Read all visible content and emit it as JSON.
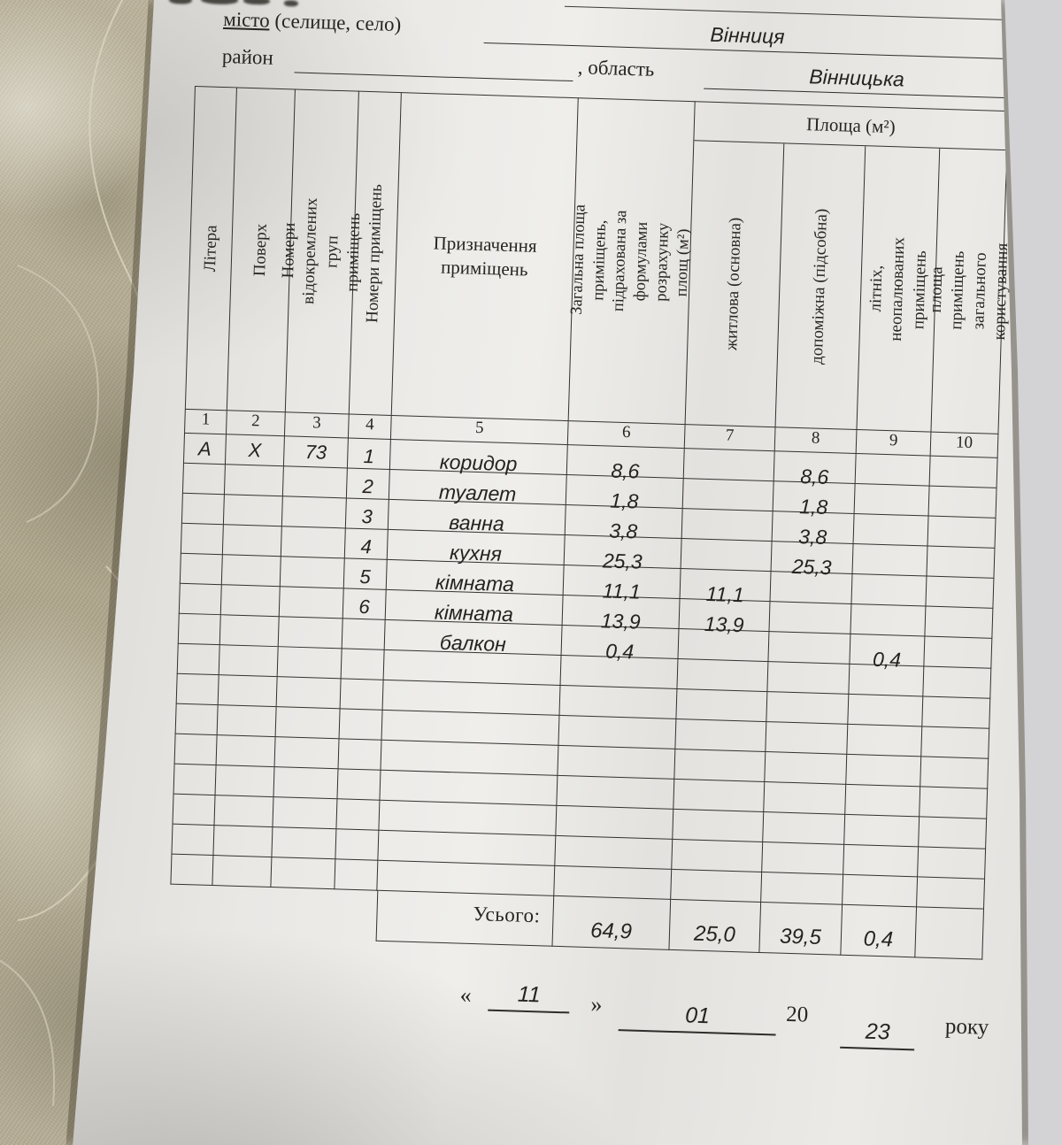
{
  "colors": {
    "paper": "#e9e8e5",
    "ink": "#26251f",
    "line": "#343230",
    "fabric": "#b3ab93",
    "handwriting": "#24231f"
  },
  "region": {
    "city_word": "місто",
    "city_suffix": " (селище, село)",
    "city_value": "Вінниця",
    "district_label": "район",
    "oblast_label": ", область",
    "oblast_value": "Вінницька"
  },
  "table": {
    "area_band_label": "Площа (м²)",
    "headers": [
      {
        "id": "1",
        "label": "Літера",
        "orient": "v",
        "under_band": false
      },
      {
        "id": "2",
        "label": "Поверх",
        "orient": "v",
        "under_band": false
      },
      {
        "id": "3",
        "label": "Номери відокремлених груп приміщень",
        "orient": "v",
        "under_band": false
      },
      {
        "id": "4",
        "label": "Номери приміщень",
        "orient": "v",
        "under_band": false
      },
      {
        "id": "5",
        "label": "Призначення приміщень",
        "orient": "h",
        "under_band": false
      },
      {
        "id": "6",
        "label": "Загальна площа приміщень, підрахована за формулами розрахунку площ (м²)",
        "orient": "v",
        "under_band": false
      },
      {
        "id": "7",
        "label": "житлова (основна)",
        "orient": "v",
        "under_band": true
      },
      {
        "id": "8",
        "label": "допоміжна (підсобна)",
        "orient": "v",
        "under_band": true
      },
      {
        "id": "9",
        "label": "літніх, неопалюваних приміщень",
        "orient": "v",
        "under_band": true
      },
      {
        "id": "10",
        "label": "площа приміщень загального користування",
        "orient": "v",
        "under_band": true
      }
    ],
    "column_numbers": [
      "1",
      "2",
      "3",
      "4",
      "5",
      "6",
      "7",
      "8",
      "9",
      "10"
    ],
    "rows": [
      [
        "А",
        "Х",
        "73",
        "1",
        "коридор",
        "8,6",
        "",
        "8,6",
        "",
        ""
      ],
      [
        "",
        "",
        "",
        "2",
        "туалет",
        "1,8",
        "",
        "1,8",
        "",
        ""
      ],
      [
        "",
        "",
        "",
        "3",
        "ванна",
        "3,8",
        "",
        "3,8",
        "",
        ""
      ],
      [
        "",
        "",
        "",
        "4",
        "кухня",
        "25,3",
        "",
        "25,3",
        "",
        ""
      ],
      [
        "",
        "",
        "",
        "5",
        "кімната",
        "11,1",
        "11,1",
        "",
        "",
        ""
      ],
      [
        "",
        "",
        "",
        "6",
        "кімната",
        "13,9",
        "13,9",
        "",
        "",
        ""
      ],
      [
        "",
        "",
        "",
        "",
        "балкон",
        "0,4",
        "",
        "",
        "0,4",
        ""
      ],
      [
        "",
        "",
        "",
        "",
        "",
        "",
        "",
        "",
        "",
        ""
      ],
      [
        "",
        "",
        "",
        "",
        "",
        "",
        "",
        "",
        "",
        ""
      ],
      [
        "",
        "",
        "",
        "",
        "",
        "",
        "",
        "",
        "",
        ""
      ],
      [
        "",
        "",
        "",
        "",
        "",
        "",
        "",
        "",
        "",
        ""
      ],
      [
        "",
        "",
        "",
        "",
        "",
        "",
        "",
        "",
        "",
        ""
      ],
      [
        "",
        "",
        "",
        "",
        "",
        "",
        "",
        "",
        "",
        ""
      ],
      [
        "",
        "",
        "",
        "",
        "",
        "",
        "",
        "",
        "",
        ""
      ],
      [
        "",
        "",
        "",
        "",
        "",
        "",
        "",
        "",
        "",
        ""
      ]
    ],
    "total_label": "Усього:",
    "totals": [
      "64,9",
      "25,0",
      "39,5",
      "0,4",
      ""
    ]
  },
  "date_line": {
    "open_quote": "«",
    "day": "11",
    "close_quote": "»",
    "month": "01",
    "century": "20",
    "year": "23",
    "year_word": "року"
  }
}
